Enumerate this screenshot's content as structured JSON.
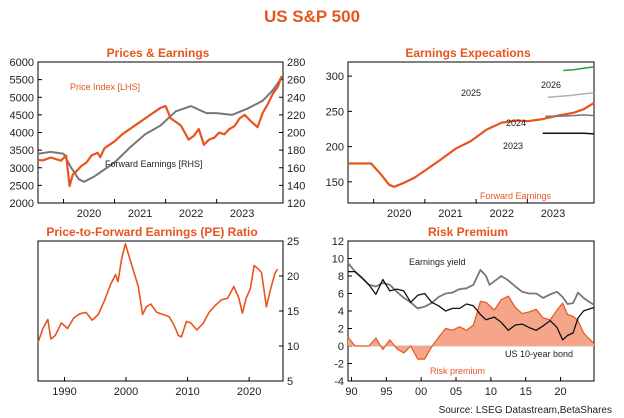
{
  "title": "US S&P 500",
  "source": "Source: LSEG Datastream,BetaShares",
  "colors": {
    "accent": "#e8541e",
    "grey": "#777777",
    "black": "#111111",
    "light_grey": "#b0b0b0",
    "green": "#2e9e3a",
    "fill": "#f4a58a"
  },
  "chart_data": [
    {
      "type": "line",
      "title": "Prices & Earnings",
      "x_ticks": [
        "2020",
        "2021",
        "2022",
        "2023"
      ],
      "x_range": [
        2019.5,
        2024.3
      ],
      "y_left_ticks": [
        "2000",
        "2500",
        "3000",
        "3500",
        "4000",
        "4500",
        "5000",
        "5500",
        "6000"
      ],
      "y_left_range": [
        2000,
        6000
      ],
      "y_right_ticks": [
        "120",
        "140",
        "160",
        "180",
        "200",
        "220",
        "240",
        "260",
        "280"
      ],
      "y_right_range": [
        120,
        280
      ],
      "series": [
        {
          "name": "Price Index [LHS]",
          "axis": "left",
          "color": "#e8541e",
          "x": [
            2019.5,
            2019.6,
            2019.75,
            2019.95,
            2020.05,
            2020.12,
            2020.18,
            2020.25,
            2020.35,
            2020.45,
            2020.55,
            2020.67,
            2020.72,
            2020.8,
            2020.9,
            2021.0,
            2021.15,
            2021.3,
            2021.45,
            2021.6,
            2021.75,
            2021.9,
            2022.0,
            2022.1,
            2022.2,
            2022.3,
            2022.45,
            2022.55,
            2022.65,
            2022.75,
            2022.85,
            2022.95,
            2023.05,
            2023.15,
            2023.25,
            2023.35,
            2023.45,
            2023.55,
            2023.65,
            2023.8,
            2023.9,
            2024.0,
            2024.1,
            2024.2,
            2024.27
          ],
          "y": [
            3220,
            3210,
            3290,
            3200,
            3350,
            2480,
            2800,
            2900,
            3050,
            3150,
            3350,
            3420,
            3300,
            3550,
            3650,
            3750,
            3950,
            4100,
            4250,
            4400,
            4550,
            4700,
            4750,
            4400,
            4300,
            4200,
            3800,
            3900,
            4100,
            3650,
            3800,
            3850,
            4000,
            3950,
            4100,
            4180,
            4400,
            4500,
            4350,
            4150,
            4550,
            4800,
            5100,
            5300,
            5600
          ]
        },
        {
          "name": "Forward Earnings [RHS]",
          "axis": "right",
          "color": "#777777",
          "x": [
            2019.5,
            2019.75,
            2020.0,
            2020.15,
            2020.3,
            2020.4,
            2020.6,
            2020.8,
            2021.0,
            2021.3,
            2021.6,
            2021.9,
            2022.2,
            2022.5,
            2022.8,
            2023.0,
            2023.3,
            2023.6,
            2023.9,
            2024.1,
            2024.27
          ],
          "y": [
            176,
            178,
            176,
            160,
            147,
            144,
            150,
            158,
            166,
            183,
            198,
            208,
            224,
            230,
            222,
            222,
            220,
            227,
            236,
            248,
            262
          ]
        }
      ],
      "annotations": [
        "Price Index [LHS]",
        "Forward Earnings [RHS]"
      ]
    },
    {
      "type": "line",
      "title": "Earnings Expecations",
      "x_ticks": [
        "2020",
        "2021",
        "2022",
        "2023"
      ],
      "x_range": [
        2019.5,
        2024.3
      ],
      "y_ticks": [
        "150",
        "200",
        "250",
        "300"
      ],
      "y_range": [
        120,
        320
      ],
      "series": [
        {
          "name": "Forward Earnings",
          "color": "#e8541e",
          "x": [
            2019.5,
            2019.75,
            2019.95,
            2020.15,
            2020.3,
            2020.4,
            2020.6,
            2020.8,
            2021.0,
            2021.3,
            2021.6,
            2021.9,
            2022.2,
            2022.5,
            2022.8,
            2023.0,
            2023.3,
            2023.6,
            2023.9,
            2024.1,
            2024.3
          ],
          "y": [
            176,
            176,
            176,
            160,
            146,
            143,
            149,
            156,
            166,
            181,
            197,
            208,
            224,
            234,
            237,
            236,
            239,
            244,
            248,
            253,
            262
          ]
        },
        {
          "name": "2023",
          "color": "#111111",
          "x": [
            2023.3,
            2023.6,
            2023.9,
            2024.1,
            2024.3
          ],
          "y": [
            219,
            219,
            219,
            219,
            218
          ]
        },
        {
          "name": "2024",
          "color": "#777777",
          "x": [
            2023.35,
            2023.6,
            2023.9,
            2024.1,
            2024.3
          ],
          "y": [
            243,
            243,
            244,
            245,
            244
          ]
        },
        {
          "name": "2025",
          "color": "#b0b0b0",
          "x": [
            2023.4,
            2023.6,
            2023.9,
            2024.1,
            2024.3
          ],
          "y": [
            270,
            271,
            273,
            275,
            276
          ]
        },
        {
          "name": "2026",
          "color": "#2e9e3a",
          "x": [
            2023.7,
            2023.9,
            2024.1,
            2024.3
          ],
          "y": [
            308,
            309,
            311,
            313
          ]
        }
      ],
      "annotations": [
        "2026",
        "2025",
        "2024",
        "2023",
        "Forward Earnings"
      ]
    },
    {
      "type": "line",
      "title": "Price-to-Forward Earnings (PE) Ratio",
      "x_ticks": [
        "1990",
        "2000",
        "2010",
        "2020"
      ],
      "x_range": [
        1985.7,
        2025.5
      ],
      "y_ticks": [
        "5",
        "10",
        "15",
        "20",
        "25"
      ],
      "y_range": [
        5,
        25
      ],
      "series": [
        {
          "name": "PE",
          "color": "#e8541e",
          "x": [
            1985.7,
            1986.5,
            1987.3,
            1987.8,
            1988.5,
            1989.5,
            1990.5,
            1991.5,
            1992.5,
            1993.5,
            1994.5,
            1995.5,
            1996.5,
            1997.5,
            1998.3,
            1998.7,
            1999.3,
            1999.9,
            2000.5,
            2001.3,
            2002.0,
            2002.7,
            2003.3,
            2004.0,
            2005.0,
            2006.0,
            2007.0,
            2007.8,
            2008.5,
            2009.0,
            2009.8,
            2010.5,
            2011.5,
            2012.5,
            2013.5,
            2014.5,
            2015.5,
            2016.5,
            2017.5,
            2018.3,
            2018.9,
            2019.5,
            2020.2,
            2020.8,
            2021.5,
            2022.0,
            2022.8,
            2023.5,
            2024.2,
            2024.6
          ],
          "y": [
            10.5,
            12.5,
            13.8,
            11.0,
            11.5,
            13.3,
            12.5,
            14.0,
            14.6,
            14.8,
            13.7,
            14.5,
            16.5,
            18.8,
            20.2,
            19.2,
            22.5,
            24.6,
            22.8,
            20.5,
            18.5,
            14.5,
            15.6,
            16.0,
            14.8,
            14.5,
            14.2,
            13.0,
            11.5,
            11.3,
            13.5,
            13.3,
            12.3,
            13.2,
            14.8,
            15.8,
            16.6,
            16.8,
            18.5,
            16.9,
            14.7,
            16.8,
            18.2,
            21.5,
            21.0,
            20.5,
            15.6,
            18.2,
            20.4,
            21.0
          ]
        }
      ]
    },
    {
      "type": "area",
      "title": "Risk Premium",
      "x_ticks": [
        "90",
        "95",
        "00",
        "05",
        "10",
        "15",
        "20"
      ],
      "x_range": [
        1989.5,
        2024.8
      ],
      "y_ticks": [
        "-4",
        "-2",
        "0",
        "2",
        "4",
        "6",
        "8",
        "10",
        "12"
      ],
      "y_range": [
        -4,
        12
      ],
      "series": [
        {
          "name": "Earnings yield",
          "color": "#777777",
          "x": [
            1989.5,
            1990.5,
            1991.5,
            1992.5,
            1993.5,
            1994.5,
            1995.5,
            1996.5,
            1997.5,
            1998.5,
            1999.5,
            2000.5,
            2001.5,
            2002.5,
            2003.5,
            2004.5,
            2005.5,
            2006.5,
            2007.5,
            2008.5,
            2009.3,
            2009.8,
            2010.5,
            2011.5,
            2012.5,
            2013.5,
            2014.5,
            2015.5,
            2016.5,
            2017.5,
            2018.5,
            2019.5,
            2020.3,
            2021.0,
            2021.8,
            2022.5,
            2023.3,
            2024.0,
            2024.8
          ],
          "y": [
            9.5,
            8.5,
            7.8,
            7.0,
            6.8,
            7.2,
            7.0,
            6.2,
            5.5,
            5.0,
            4.3,
            4.5,
            4.9,
            5.6,
            6.0,
            6.1,
            6.5,
            6.6,
            7.0,
            8.7,
            8.0,
            7.0,
            7.4,
            8.0,
            7.5,
            6.8,
            6.2,
            6.0,
            6.0,
            5.5,
            5.9,
            6.2,
            5.6,
            4.8,
            4.9,
            6.1,
            5.5,
            5.1,
            4.7
          ]
        },
        {
          "name": "US 10-year bond",
          "color": "#111111",
          "x": [
            1989.5,
            1990.5,
            1991.5,
            1992.5,
            1993.5,
            1994.5,
            1995.5,
            1996.5,
            1997.5,
            1998.5,
            1999.5,
            2000.5,
            2001.5,
            2002.5,
            2003.5,
            2004.5,
            2005.5,
            2006.5,
            2007.5,
            2008.5,
            2009.3,
            2010.5,
            2011.5,
            2012.5,
            2013.5,
            2014.5,
            2015.5,
            2016.5,
            2017.5,
            2018.5,
            2019.5,
            2020.3,
            2021.0,
            2021.8,
            2022.5,
            2023.3,
            2024.0,
            2024.8
          ],
          "y": [
            8.5,
            8.5,
            7.8,
            7.0,
            5.9,
            7.6,
            6.3,
            6.5,
            6.3,
            5.0,
            5.8,
            6.0,
            5.0,
            4.6,
            4.0,
            4.3,
            4.3,
            4.8,
            4.6,
            3.6,
            3.0,
            3.3,
            2.7,
            1.8,
            2.4,
            2.5,
            2.1,
            1.8,
            2.3,
            2.9,
            2.1,
            0.7,
            1.2,
            1.5,
            3.2,
            4.0,
            4.2,
            4.4
          ]
        },
        {
          "name": "Risk premium",
          "color": "#e8541e",
          "x": [
            1989.5,
            1990.5,
            1991.5,
            1992.5,
            1993.5,
            1994.5,
            1995.5,
            1996.5,
            1997.5,
            1998.5,
            1999.5,
            2000.5,
            2001.5,
            2002.5,
            2003.5,
            2004.5,
            2005.5,
            2006.5,
            2007.5,
            2008.5,
            2009.3,
            2010.5,
            2011.5,
            2012.5,
            2013.5,
            2014.5,
            2015.5,
            2016.5,
            2017.5,
            2018.5,
            2019.5,
            2020.3,
            2021.0,
            2021.8,
            2022.5,
            2023.3,
            2024.0,
            2024.8
          ],
          "y": [
            1.0,
            0.0,
            0.0,
            0.0,
            0.9,
            -0.4,
            0.7,
            -0.3,
            -0.8,
            0.0,
            -1.5,
            -1.5,
            -0.1,
            1.0,
            2.0,
            1.8,
            2.2,
            1.8,
            2.4,
            5.1,
            5.0,
            4.1,
            5.3,
            5.7,
            4.4,
            3.7,
            3.9,
            4.2,
            3.2,
            3.0,
            4.1,
            4.9,
            3.6,
            3.4,
            2.9,
            1.5,
            0.9,
            0.3
          ]
        }
      ],
      "annotations": [
        "Earnings yield",
        "US 10-year bond",
        "Risk premium"
      ]
    }
  ]
}
